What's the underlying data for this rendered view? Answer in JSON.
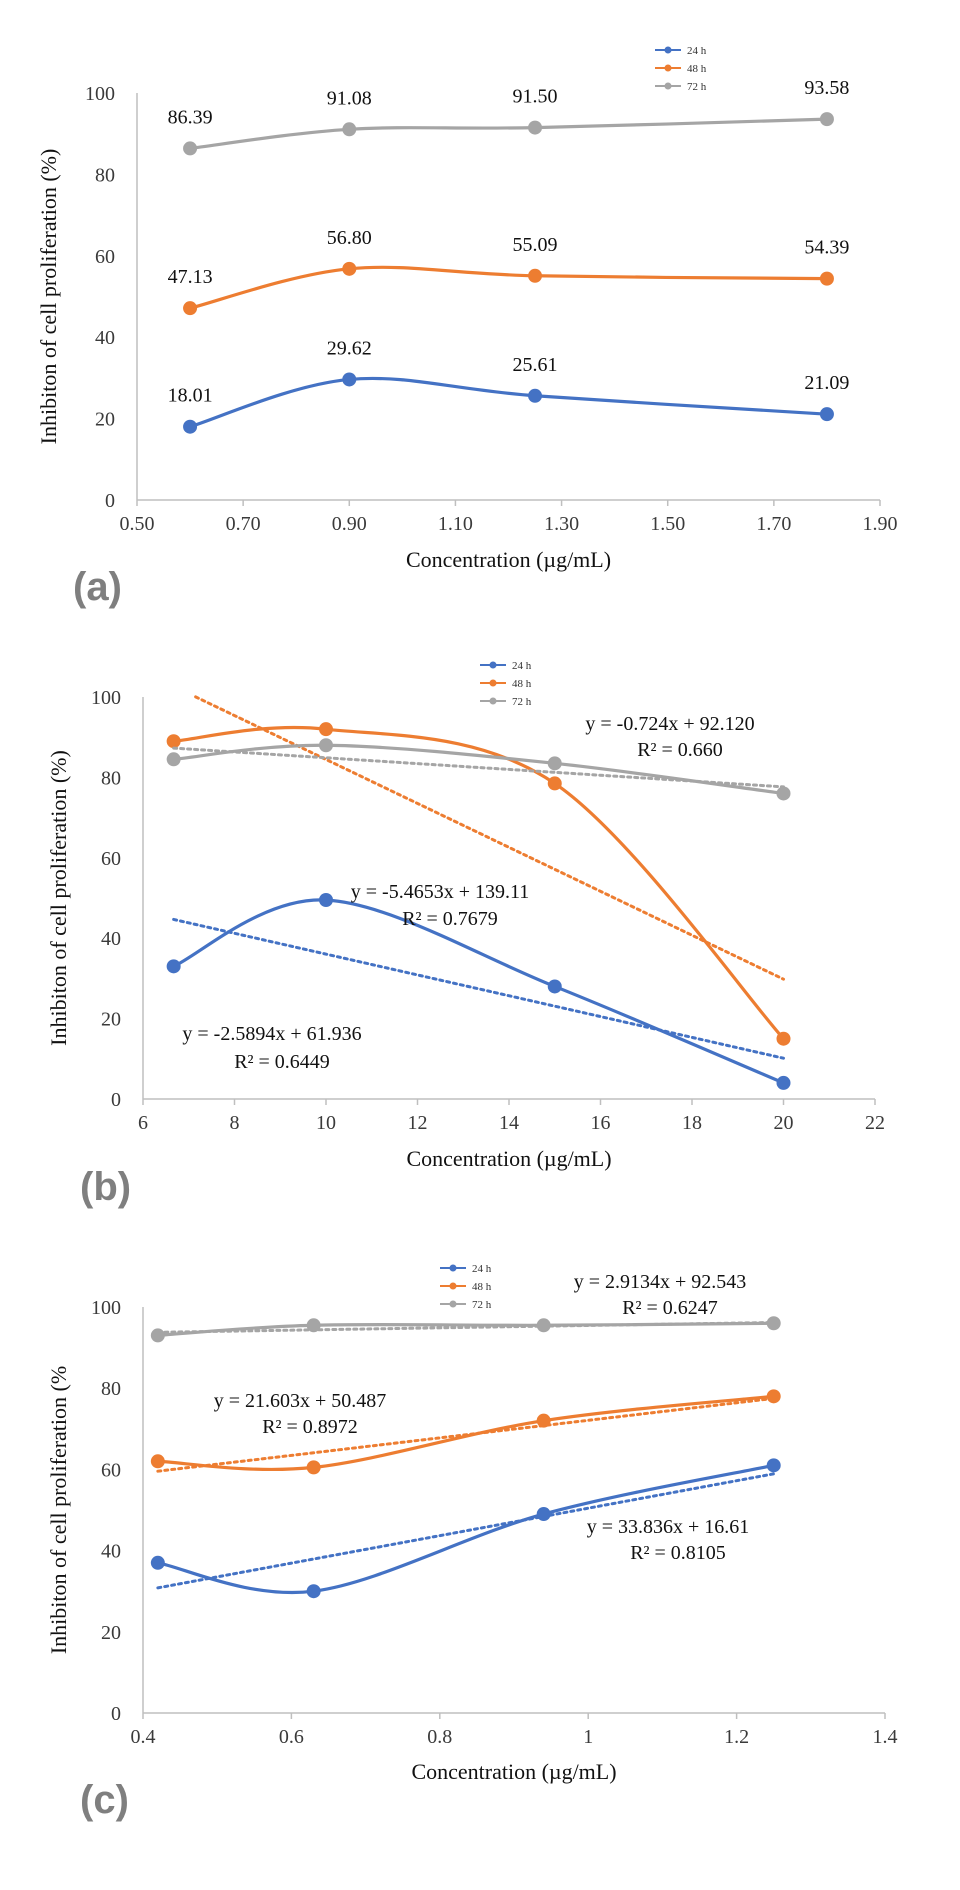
{
  "colors": {
    "24h": "#4472C4",
    "48h": "#ED7D31",
    "72h": "#A5A5A5"
  },
  "chart_data": [
    {
      "type": "line",
      "panel_label": "(a)",
      "xlabel": "Concentration (µg/mL)",
      "ylabel": "Inhibiton of cell proliferation  (%)",
      "xlim": [
        0.5,
        1.9
      ],
      "ylim": [
        0,
        100
      ],
      "x_ticks": [
        "0.50",
        "0.70",
        "0.90",
        "1.10",
        "1.30",
        "1.50",
        "1.70",
        "1.90"
      ],
      "y_ticks": [
        "0",
        "20",
        "40",
        "60",
        "80",
        "100"
      ],
      "x": [
        0.6,
        0.9,
        1.25,
        1.8
      ],
      "legend_position": "top-right",
      "series": [
        {
          "name": "24 h",
          "color_key": "24h",
          "values": [
            18.01,
            29.62,
            25.61,
            21.09
          ],
          "data_labels": [
            "18.01",
            "29.62",
            "25.61",
            "21.09"
          ]
        },
        {
          "name": "48 h",
          "color_key": "48h",
          "values": [
            47.13,
            56.8,
            55.09,
            54.39
          ],
          "data_labels": [
            "47.13",
            "56.80",
            "55.09",
            "54.39"
          ]
        },
        {
          "name": "72 h",
          "color_key": "72h",
          "values": [
            86.39,
            91.08,
            91.5,
            93.58
          ],
          "data_labels": [
            "86.39",
            "91.08",
            "91.50",
            "93.58"
          ]
        }
      ]
    },
    {
      "type": "line",
      "panel_label": "(b)",
      "xlabel": "Concentration (µg/mL)",
      "ylabel": "Inhibiton of cell proliferation  (%)",
      "xlim": [
        6,
        22
      ],
      "ylim": [
        0,
        100
      ],
      "x_ticks": [
        "6",
        "8",
        "10",
        "12",
        "14",
        "16",
        "18",
        "20",
        "22"
      ],
      "y_ticks": [
        "0",
        "20",
        "40",
        "60",
        "80",
        "100"
      ],
      "x": [
        6.67,
        10,
        15,
        20
      ],
      "legend_position": "top-center",
      "series": [
        {
          "name": "24 h",
          "color_key": "24h",
          "values": [
            33,
            49.5,
            28,
            4
          ],
          "trendline": {
            "slope": -2.5894,
            "intercept": 61.936,
            "x_range": [
              6.67,
              20
            ],
            "equation": "y = -2.5894x + 61.936",
            "r2": "R² = 0.6449"
          }
        },
        {
          "name": "48 h",
          "color_key": "48h",
          "values": [
            89,
            92,
            78.5,
            15
          ],
          "trendline": {
            "slope": -5.4653,
            "intercept": 139.11,
            "x_range": [
              7.15,
              20
            ],
            "equation": "y = -5.4653x + 139.11",
            "r2": "R² = 0.7679"
          }
        },
        {
          "name": "72 h",
          "color_key": "72h",
          "values": [
            84.5,
            88,
            83.5,
            76
          ],
          "trendline": {
            "slope": -0.724,
            "intercept": 92.12,
            "x_range": [
              6.67,
              20
            ],
            "equation": "y = -0.724x + 92.120",
            "r2": "R² = 0.660"
          }
        }
      ]
    },
    {
      "type": "line",
      "panel_label": "(c)",
      "xlabel": "Concentration (µg/mL)",
      "ylabel": "Inhibiton of cell proliferation  (%",
      "xlim": [
        0.4,
        1.4
      ],
      "ylim": [
        0,
        100
      ],
      "x_ticks": [
        "0.4",
        "0.6",
        "0.8",
        "1",
        "1.2",
        "1.4"
      ],
      "y_ticks": [
        "0",
        "20",
        "40",
        "60",
        "80",
        "100"
      ],
      "x": [
        0.42,
        0.63,
        0.94,
        1.25
      ],
      "legend_position": "top-center",
      "series": [
        {
          "name": "24 h",
          "color_key": "24h",
          "values": [
            37,
            30,
            49,
            61
          ],
          "trendline": {
            "slope": 33.836,
            "intercept": 16.61,
            "x_range": [
              0.42,
              1.25
            ],
            "equation": "y = 33.836x + 16.61",
            "r2": "R² = 0.8105"
          }
        },
        {
          "name": "48 h",
          "color_key": "48h",
          "values": [
            62,
            60.5,
            72,
            78
          ],
          "trendline": {
            "slope": 21.603,
            "intercept": 50.487,
            "x_range": [
              0.42,
              1.25
            ],
            "equation": "y = 21.603x + 50.487",
            "r2": "R² = 0.8972"
          }
        },
        {
          "name": "72 h",
          "color_key": "72h",
          "values": [
            93,
            95.5,
            95.5,
            96
          ],
          "trendline": {
            "slope": 2.9134,
            "intercept": 92.543,
            "x_range": [
              0.42,
              1.25
            ],
            "equation": "y = 2.9134x + 92.543",
            "r2": "R² = 0.6247"
          }
        }
      ]
    }
  ]
}
